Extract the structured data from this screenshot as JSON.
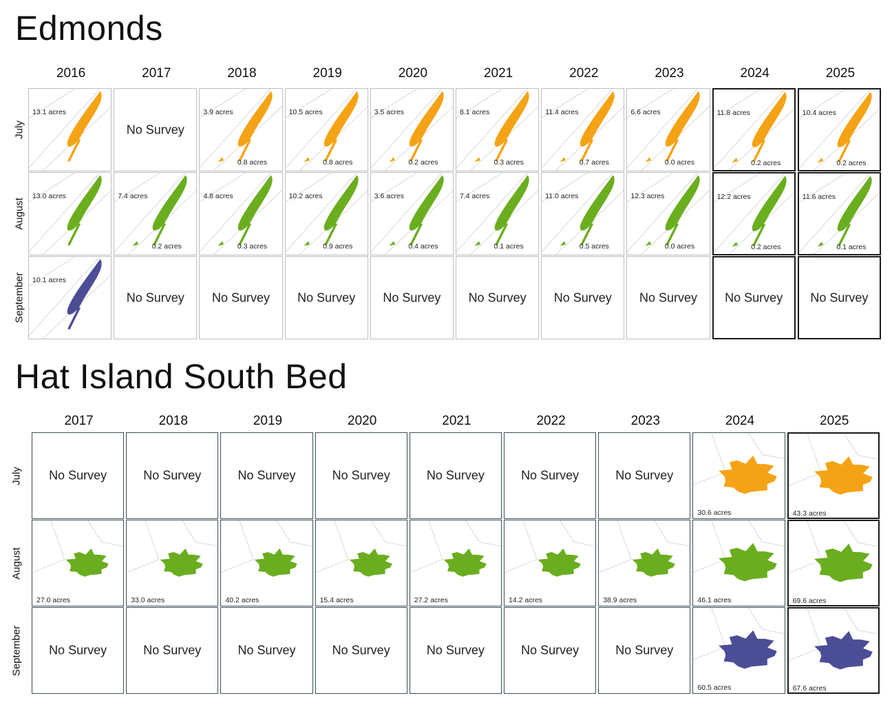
{
  "colors": {
    "july": "#F5A316",
    "august": "#6AAE1F",
    "september": "#4B4E96",
    "map_lines": "#d0d0d0"
  },
  "sections": [
    {
      "id": "edmonds",
      "title": "Edmonds",
      "years": [
        "2016",
        "2017",
        "2018",
        "2019",
        "2020",
        "2021",
        "2022",
        "2023",
        "2024",
        "2025"
      ],
      "months": [
        "July",
        "August",
        "September"
      ],
      "no_survey_text": "No Survey",
      "cells": {
        "July": [
          {
            "acres": [
              "13.1 acres"
            ]
          },
          {
            "no_survey": true
          },
          {
            "acres": [
              "3.9 acres",
              "0.8 acres"
            ]
          },
          {
            "acres": [
              "10.5 acres",
              "0.8 acres"
            ]
          },
          {
            "acres": [
              "3.5 acres",
              "0.2 acres"
            ]
          },
          {
            "acres": [
              "8.1 acres",
              "0.3 acres"
            ]
          },
          {
            "acres": [
              "11.4 acres",
              "0.7 acres"
            ]
          },
          {
            "acres": [
              "6.6 acres",
              "0.0 acres"
            ]
          },
          {
            "acres": [
              "11.8 acres",
              "0.2 acres"
            ]
          },
          {
            "acres": [
              "10.4 acres",
              "0.2 acres"
            ]
          }
        ],
        "August": [
          {
            "acres": [
              "13.0 acres"
            ]
          },
          {
            "acres": [
              "7.4 acres",
              "0.2 acres"
            ]
          },
          {
            "acres": [
              "4.8 acres",
              "0.3 acres"
            ]
          },
          {
            "acres": [
              "10.2 acres",
              "0.9 acres"
            ]
          },
          {
            "acres": [
              "3.6 acres",
              "0.4 acres"
            ]
          },
          {
            "acres": [
              "7.4 acres",
              "0.1 acres"
            ]
          },
          {
            "acres": [
              "11.0 acres",
              "0.5 acres"
            ]
          },
          {
            "acres": [
              "12.3 acres",
              "0.0 acres"
            ]
          },
          {
            "acres": [
              "12.2 acres",
              "0.2 acres"
            ]
          },
          {
            "acres": [
              "11.6 acres",
              "0.1 acres"
            ]
          }
        ],
        "September": [
          {
            "acres": [
              "10.1 acres"
            ]
          },
          {
            "no_survey": true
          },
          {
            "no_survey": true
          },
          {
            "no_survey": true
          },
          {
            "no_survey": true
          },
          {
            "no_survey": true
          },
          {
            "no_survey": true
          },
          {
            "no_survey": true
          },
          {
            "no_survey": true
          },
          {
            "no_survey": true
          }
        ]
      }
    },
    {
      "id": "hat-island",
      "title": "Hat Island South Bed",
      "years": [
        "2017",
        "2018",
        "2019",
        "2020",
        "2021",
        "2022",
        "2023",
        "2024",
        "2025"
      ],
      "months": [
        "July",
        "August",
        "September"
      ],
      "no_survey_text": "No Survey",
      "cells": {
        "July": [
          {
            "no_survey": true
          },
          {
            "no_survey": true
          },
          {
            "no_survey": true
          },
          {
            "no_survey": true
          },
          {
            "no_survey": true
          },
          {
            "no_survey": true
          },
          {
            "no_survey": true
          },
          {
            "acres": [
              "30.6 acres"
            ]
          },
          {
            "acres": [
              "43.3 acres"
            ]
          }
        ],
        "August": [
          {
            "acres": [
              "27.0 acres"
            ]
          },
          {
            "acres": [
              "33.0 acres"
            ]
          },
          {
            "acres": [
              "40.2 acres"
            ]
          },
          {
            "acres": [
              "15.4 acres"
            ]
          },
          {
            "acres": [
              "27.2 acres"
            ]
          },
          {
            "acres": [
              "14.2 acres"
            ]
          },
          {
            "acres": [
              "38.9 acres"
            ]
          },
          {
            "acres": [
              "46.1 acres"
            ]
          },
          {
            "acres": [
              "69.6 acres"
            ]
          }
        ],
        "September": [
          {
            "no_survey": true
          },
          {
            "no_survey": true
          },
          {
            "no_survey": true
          },
          {
            "no_survey": true
          },
          {
            "no_survey": true
          },
          {
            "no_survey": true
          },
          {
            "no_survey": true
          },
          {
            "acres": [
              "60.5 acres"
            ]
          },
          {
            "acres": [
              "67.6 acres"
            ]
          }
        ]
      }
    }
  ]
}
